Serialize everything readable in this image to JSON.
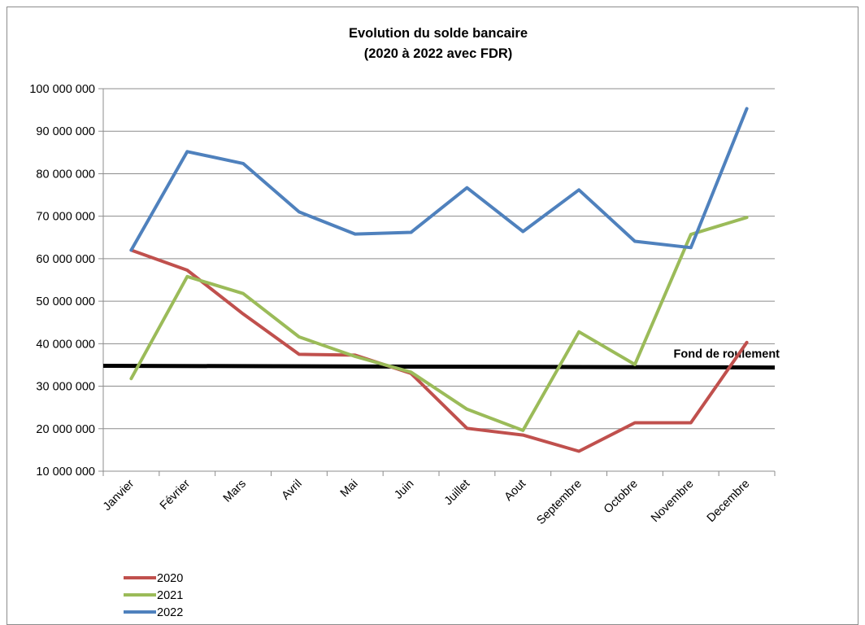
{
  "chart_data": {
    "type": "line",
    "title": [
      "Evolution du solde bancaire",
      "(2020 à 2022 avec FDR)"
    ],
    "xlabel": "",
    "ylabel": "",
    "ylim": [
      10000000,
      100000000
    ],
    "y_ticks": [
      10000000,
      20000000,
      30000000,
      40000000,
      50000000,
      60000000,
      70000000,
      80000000,
      90000000,
      100000000
    ],
    "y_tick_labels": [
      "10 000 000",
      "20 000 000",
      "30 000 000",
      "40 000 000",
      "50 000 000",
      "60 000 000",
      "70 000 000",
      "80 000 000",
      "90 000 000",
      "100 000 000"
    ],
    "grid": true,
    "categories": [
      "Janvier",
      "Février",
      "Mars",
      "Avril",
      "Mai",
      "Juin",
      "Juillet",
      "Aout",
      "Septembre",
      "Octobre",
      "Novembre",
      "Decembre"
    ],
    "series": [
      {
        "name": "2020",
        "color": "#c0504d",
        "values": [
          62000000,
          57300000,
          47000000,
          37500000,
          37300000,
          33000000,
          20100000,
          18500000,
          14700000,
          21400000,
          21400000,
          40300000
        ]
      },
      {
        "name": "2021",
        "color": "#9bbb59",
        "values": [
          31800000,
          55800000,
          51800000,
          41600000,
          37000000,
          33300000,
          24600000,
          19600000,
          42800000,
          35100000,
          65700000,
          69700000
        ]
      },
      {
        "name": "2022",
        "color": "#4f81bd",
        "values": [
          62000000,
          85200000,
          82400000,
          71000000,
          65800000,
          66200000,
          76700000,
          66400000,
          76200000,
          64100000,
          62600000,
          95300000
        ]
      }
    ],
    "reference_line": {
      "label": "Fond de roulement",
      "color": "#000000",
      "start": 34800000,
      "end": 34400000
    },
    "legend_position": "bottom-left"
  }
}
